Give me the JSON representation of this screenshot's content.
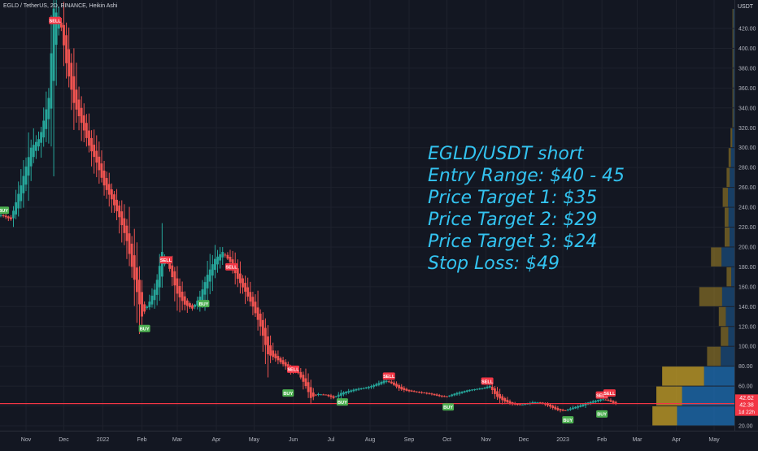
{
  "header": {
    "symbol": "EGLD / TetherUS, 2D, BINANCE, Heikin Ashi",
    "currency": "USDT"
  },
  "annotation": {
    "lines": [
      "EGLD/USDT short",
      "Entry Range: $40 - 45",
      "Price Target 1: $35",
      "Price Target 2: $29",
      "Price Target 3: $24",
      "Stop Loss: $49"
    ],
    "color": "#33c3f0"
  },
  "price_badges": {
    "upper": "42.62",
    "current": "42.38",
    "countdown": "1d 22h"
  },
  "colors": {
    "background": "#131722",
    "up": "#26a69a",
    "down": "#ef5350",
    "price_line": "#f23645",
    "buy": "#4caf50",
    "sell": "#f23645",
    "profile_gold": "#c9a227",
    "profile_blue": "#1e6fb5"
  },
  "chart_data": {
    "type": "candlestick",
    "style": "Heikin Ashi",
    "y_scale": "linear",
    "ylim": [
      16,
      446
    ],
    "y_ticks": [
      20,
      40,
      60,
      80,
      100,
      120,
      140,
      160,
      180,
      200,
      220,
      240,
      260,
      280,
      300,
      320,
      340,
      360,
      380,
      400,
      420
    ],
    "x_ticks": [
      {
        "label": "Nov",
        "date": "2021-11-01"
      },
      {
        "label": "Dec",
        "date": "2021-12-01"
      },
      {
        "label": "2022",
        "date": "2022-01-01"
      },
      {
        "label": "Feb",
        "date": "2022-02-01"
      },
      {
        "label": "Mar",
        "date": "2022-03-01"
      },
      {
        "label": "Apr",
        "date": "2022-04-01"
      },
      {
        "label": "May",
        "date": "2022-05-01"
      },
      {
        "label": "Jun",
        "date": "2022-06-01"
      },
      {
        "label": "Jul",
        "date": "2022-07-01"
      },
      {
        "label": "Aug",
        "date": "2022-08-01"
      },
      {
        "label": "Sep",
        "date": "2022-09-01"
      },
      {
        "label": "Oct",
        "date": "2022-10-01"
      },
      {
        "label": "Nov",
        "date": "2022-11-01"
      },
      {
        "label": "Dec",
        "date": "2022-12-01"
      },
      {
        "label": "2023",
        "date": "2023-01-01"
      },
      {
        "label": "Feb",
        "date": "2023-02-01"
      },
      {
        "label": "Mar",
        "date": "2023-03-01"
      },
      {
        "label": "Apr",
        "date": "2023-04-01"
      },
      {
        "label": "May",
        "date": "2023-05-01"
      }
    ],
    "price_path": [
      [
        "2021-10-12",
        232
      ],
      [
        "2021-10-20",
        228
      ],
      [
        "2021-10-28",
        262
      ],
      [
        "2021-11-05",
        300
      ],
      [
        "2021-11-12",
        310
      ],
      [
        "2021-11-19",
        350
      ],
      [
        "2021-11-23",
        440
      ],
      [
        "2021-11-28",
        430
      ],
      [
        "2021-12-03",
        385
      ],
      [
        "2021-12-09",
        345
      ],
      [
        "2021-12-15",
        325
      ],
      [
        "2021-12-21",
        302
      ],
      [
        "2021-12-27",
        285
      ],
      [
        "2022-01-02",
        262
      ],
      [
        "2022-01-08",
        248
      ],
      [
        "2022-01-14",
        230
      ],
      [
        "2022-01-20",
        206
      ],
      [
        "2022-01-26",
        167
      ],
      [
        "2022-02-01",
        130
      ],
      [
        "2022-02-07",
        145
      ],
      [
        "2022-02-12",
        160
      ],
      [
        "2022-02-17",
        195
      ],
      [
        "2022-02-23",
        178
      ],
      [
        "2022-03-01",
        153
      ],
      [
        "2022-03-07",
        142
      ],
      [
        "2022-03-13",
        138
      ],
      [
        "2022-03-19",
        150
      ],
      [
        "2022-03-25",
        172
      ],
      [
        "2022-03-31",
        188
      ],
      [
        "2022-04-06",
        195
      ],
      [
        "2022-04-12",
        185
      ],
      [
        "2022-04-18",
        168
      ],
      [
        "2022-04-24",
        155
      ],
      [
        "2022-04-30",
        140
      ],
      [
        "2022-05-06",
        120
      ],
      [
        "2022-05-12",
        92
      ],
      [
        "2022-05-18",
        88
      ],
      [
        "2022-05-24",
        82
      ],
      [
        "2022-05-30",
        76
      ],
      [
        "2022-06-05",
        73
      ],
      [
        "2022-06-11",
        60
      ],
      [
        "2022-06-15",
        48
      ],
      [
        "2022-06-21",
        52
      ],
      [
        "2022-06-27",
        51
      ],
      [
        "2022-07-03",
        48
      ],
      [
        "2022-07-09",
        53
      ],
      [
        "2022-07-15",
        55
      ],
      [
        "2022-07-21",
        57
      ],
      [
        "2022-07-27",
        58
      ],
      [
        "2022-08-02",
        60
      ],
      [
        "2022-08-08",
        63
      ],
      [
        "2022-08-13",
        66
      ],
      [
        "2022-08-19",
        62
      ],
      [
        "2022-08-25",
        57
      ],
      [
        "2022-08-31",
        55
      ],
      [
        "2022-09-06",
        54
      ],
      [
        "2022-09-12",
        53
      ],
      [
        "2022-09-18",
        52
      ],
      [
        "2022-09-24",
        50
      ],
      [
        "2022-09-30",
        49
      ],
      [
        "2022-10-06",
        52
      ],
      [
        "2022-10-12",
        54
      ],
      [
        "2022-10-18",
        56
      ],
      [
        "2022-10-24",
        57
      ],
      [
        "2022-10-30",
        58
      ],
      [
        "2022-11-04",
        60
      ],
      [
        "2022-11-09",
        50
      ],
      [
        "2022-11-15",
        45
      ],
      [
        "2022-11-21",
        42
      ],
      [
        "2022-11-27",
        41
      ],
      [
        "2022-12-03",
        42
      ],
      [
        "2022-12-09",
        44
      ],
      [
        "2022-12-15",
        43
      ],
      [
        "2022-12-21",
        40
      ],
      [
        "2022-12-27",
        36
      ],
      [
        "2023-01-02",
        35
      ],
      [
        "2023-01-08",
        38
      ],
      [
        "2023-01-14",
        40
      ],
      [
        "2023-01-20",
        43
      ],
      [
        "2023-01-26",
        45
      ],
      [
        "2023-02-01",
        47
      ],
      [
        "2023-02-05",
        46
      ],
      [
        "2023-02-10",
        43
      ],
      [
        "2023-02-13",
        42.38
      ]
    ],
    "signals": [
      {
        "label": "BUY",
        "date": "2021-10-14",
        "price": 237
      },
      {
        "label": "SELL",
        "date": "2021-11-24",
        "price": 428
      },
      {
        "label": "BUY",
        "date": "2022-02-03",
        "price": 118
      },
      {
        "label": "SELL",
        "date": "2022-02-20",
        "price": 187
      },
      {
        "label": "BUY",
        "date": "2022-03-22",
        "price": 143
      },
      {
        "label": "SELL",
        "date": "2022-04-13",
        "price": 180
      },
      {
        "label": "SELL",
        "date": "2022-06-01",
        "price": 77
      },
      {
        "label": "BUY",
        "date": "2022-05-28",
        "price": 53
      },
      {
        "label": "BUY",
        "date": "2022-07-10",
        "price": 44
      },
      {
        "label": "SELL",
        "date": "2022-08-16",
        "price": 70
      },
      {
        "label": "BUY",
        "date": "2022-10-02",
        "price": 39
      },
      {
        "label": "SELL",
        "date": "2022-11-02",
        "price": 65
      },
      {
        "label": "BUY",
        "date": "2023-01-05",
        "price": 26
      },
      {
        "label": "SELL",
        "date": "2023-02-01",
        "price": 51
      },
      {
        "label": "BUY",
        "date": "2023-02-01",
        "price": 32
      },
      {
        "label": "SELL",
        "date": "2023-02-07",
        "price": 53
      }
    ],
    "horizontal_line": {
      "price": 42.38
    },
    "volume_profile": [
      {
        "price": 30,
        "total": 0.42,
        "up_share": 0.3
      },
      {
        "price": 50,
        "total": 0.4,
        "up_share": 0.33
      },
      {
        "price": 70,
        "total": 0.37,
        "up_share": 0.58
      },
      {
        "price": 90,
        "total": 0.14,
        "up_share": 0.5
      },
      {
        "price": 110,
        "total": 0.07,
        "up_share": 0.55
      },
      {
        "price": 130,
        "total": 0.08,
        "up_share": 0.45
      },
      {
        "price": 150,
        "total": 0.18,
        "up_share": 0.65
      },
      {
        "price": 170,
        "total": 0.04,
        "up_share": 0.6
      },
      {
        "price": 190,
        "total": 0.12,
        "up_share": 0.45
      },
      {
        "price": 210,
        "total": 0.05,
        "up_share": 0.5
      },
      {
        "price": 230,
        "total": 0.05,
        "up_share": 0.4
      },
      {
        "price": 250,
        "total": 0.06,
        "up_share": 0.45
      },
      {
        "price": 270,
        "total": 0.04,
        "up_share": 0.4
      },
      {
        "price": 290,
        "total": 0.03,
        "up_share": 0.4
      },
      {
        "price": 310,
        "total": 0.02,
        "up_share": 0.45
      },
      {
        "price": 330,
        "total": 0.01,
        "up_share": 0.5
      },
      {
        "price": 350,
        "total": 0.01,
        "up_share": 0.5
      },
      {
        "price": 370,
        "total": 0.01,
        "up_share": 0.5
      },
      {
        "price": 390,
        "total": 0.01,
        "up_share": 0.5
      },
      {
        "price": 410,
        "total": 0.01,
        "up_share": 0.5
      },
      {
        "price": 430,
        "total": 0.01,
        "up_share": 0.5
      }
    ]
  }
}
